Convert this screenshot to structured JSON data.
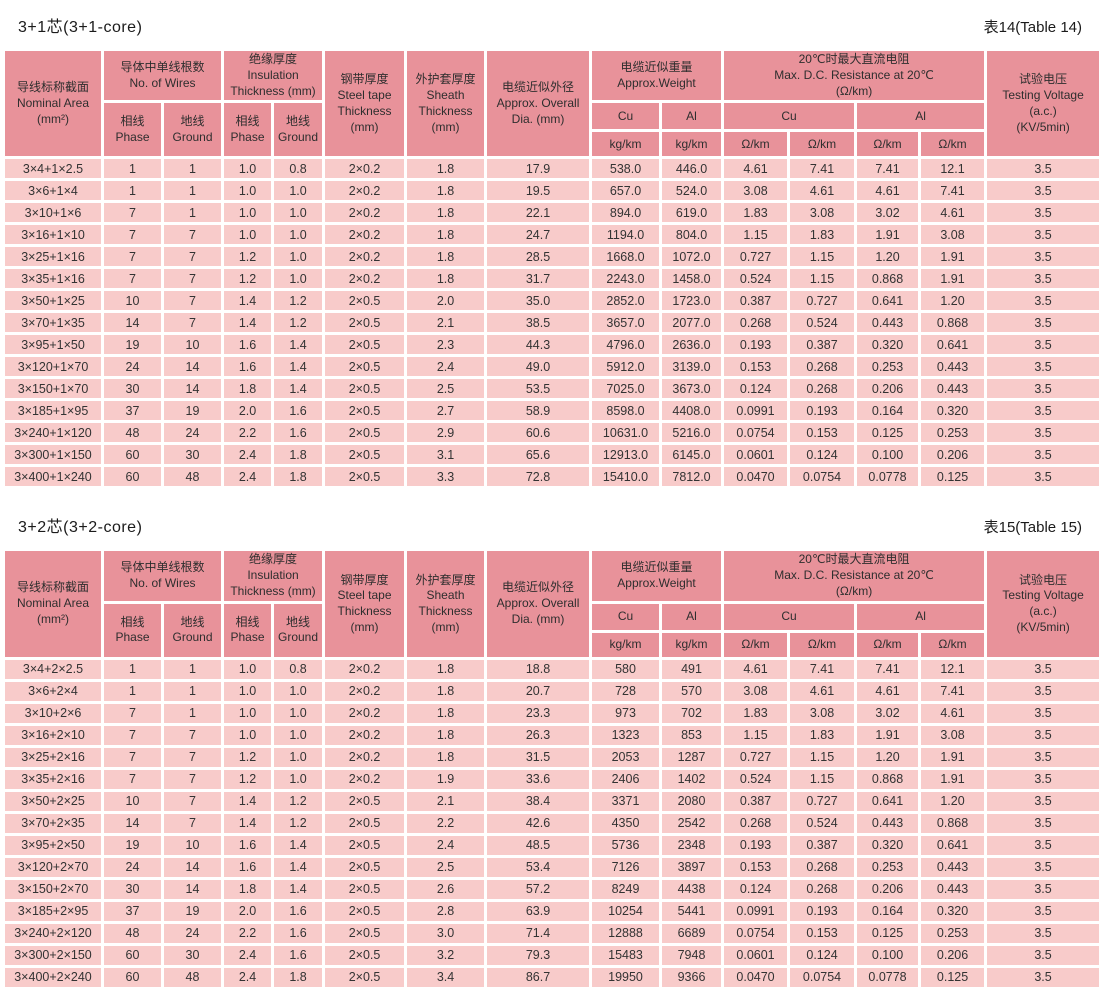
{
  "colors": {
    "page_bg": "#ffffff",
    "header_cell_bg": "#e8929a",
    "data_cell_bg": "#f8cbca",
    "gridline": "#ffffff",
    "text": "#333333"
  },
  "header": {
    "nominal_area": "导线标称截面\nNominal Area\n(mm²)",
    "wires": "导体中单线根数\nNo. of Wires",
    "phase": "相线\nPhase",
    "ground": "地线\nGround",
    "insulation": "绝缘厚度\nInsulation\nThickness (mm)",
    "steel_tape": "钢带厚度\nSteel tape\nThickness\n(mm)",
    "sheath": "外护套厚度\nSheath\nThickness\n(mm)",
    "overall_dia": "电缆近似外径\nApprox. Overall\nDia. (mm)",
    "weight": "电缆近似重量\nApprox.Weight",
    "resistance": "20℃时最大直流电阻\nMax. D.C. Resistance at 20℃\n(Ω/km)",
    "testing_voltage": "试验电压\nTesting Voltage\n(a.c.)\n(KV/5min)",
    "cu": "Cu",
    "al": "Al",
    "kg_km": "kg/km",
    "ohm_km": "Ω/km"
  },
  "tables": [
    {
      "title": "3+1芯(3+1-core)",
      "table_no": "表14(Table 14)",
      "rows": [
        [
          "3×4+1×2.5",
          "1",
          "1",
          "1.0",
          "0.8",
          "2×0.2",
          "1.8",
          "17.9",
          "538.0",
          "446.0",
          "4.61",
          "7.41",
          "7.41",
          "12.1",
          "3.5"
        ],
        [
          "3×6+1×4",
          "1",
          "1",
          "1.0",
          "1.0",
          "2×0.2",
          "1.8",
          "19.5",
          "657.0",
          "524.0",
          "3.08",
          "4.61",
          "4.61",
          "7.41",
          "3.5"
        ],
        [
          "3×10+1×6",
          "7",
          "1",
          "1.0",
          "1.0",
          "2×0.2",
          "1.8",
          "22.1",
          "894.0",
          "619.0",
          "1.83",
          "3.08",
          "3.02",
          "4.61",
          "3.5"
        ],
        [
          "3×16+1×10",
          "7",
          "7",
          "1.0",
          "1.0",
          "2×0.2",
          "1.8",
          "24.7",
          "1194.0",
          "804.0",
          "1.15",
          "1.83",
          "1.91",
          "3.08",
          "3.5"
        ],
        [
          "3×25+1×16",
          "7",
          "7",
          "1.2",
          "1.0",
          "2×0.2",
          "1.8",
          "28.5",
          "1668.0",
          "1072.0",
          "0.727",
          "1.15",
          "1.20",
          "1.91",
          "3.5"
        ],
        [
          "3×35+1×16",
          "7",
          "7",
          "1.2",
          "1.0",
          "2×0.2",
          "1.8",
          "31.7",
          "2243.0",
          "1458.0",
          "0.524",
          "1.15",
          "0.868",
          "1.91",
          "3.5"
        ],
        [
          "3×50+1×25",
          "10",
          "7",
          "1.4",
          "1.2",
          "2×0.5",
          "2.0",
          "35.0",
          "2852.0",
          "1723.0",
          "0.387",
          "0.727",
          "0.641",
          "1.20",
          "3.5"
        ],
        [
          "3×70+1×35",
          "14",
          "7",
          "1.4",
          "1.2",
          "2×0.5",
          "2.1",
          "38.5",
          "3657.0",
          "2077.0",
          "0.268",
          "0.524",
          "0.443",
          "0.868",
          "3.5"
        ],
        [
          "3×95+1×50",
          "19",
          "10",
          "1.6",
          "1.4",
          "2×0.5",
          "2.3",
          "44.3",
          "4796.0",
          "2636.0",
          "0.193",
          "0.387",
          "0.320",
          "0.641",
          "3.5"
        ],
        [
          "3×120+1×70",
          "24",
          "14",
          "1.6",
          "1.4",
          "2×0.5",
          "2.4",
          "49.0",
          "5912.0",
          "3139.0",
          "0.153",
          "0.268",
          "0.253",
          "0.443",
          "3.5"
        ],
        [
          "3×150+1×70",
          "30",
          "14",
          "1.8",
          "1.4",
          "2×0.5",
          "2.5",
          "53.5",
          "7025.0",
          "3673.0",
          "0.124",
          "0.268",
          "0.206",
          "0.443",
          "3.5"
        ],
        [
          "3×185+1×95",
          "37",
          "19",
          "2.0",
          "1.6",
          "2×0.5",
          "2.7",
          "58.9",
          "8598.0",
          "4408.0",
          "0.0991",
          "0.193",
          "0.164",
          "0.320",
          "3.5"
        ],
        [
          "3×240+1×120",
          "48",
          "24",
          "2.2",
          "1.6",
          "2×0.5",
          "2.9",
          "60.6",
          "10631.0",
          "5216.0",
          "0.0754",
          "0.153",
          "0.125",
          "0.253",
          "3.5"
        ],
        [
          "3×300+1×150",
          "60",
          "30",
          "2.4",
          "1.8",
          "2×0.5",
          "3.1",
          "65.6",
          "12913.0",
          "6145.0",
          "0.0601",
          "0.124",
          "0.100",
          "0.206",
          "3.5"
        ],
        [
          "3×400+1×240",
          "60",
          "48",
          "2.4",
          "1.8",
          "2×0.5",
          "3.3",
          "72.8",
          "15410.0",
          "7812.0",
          "0.0470",
          "0.0754",
          "0.0778",
          "0.125",
          "3.5"
        ]
      ]
    },
    {
      "title": "3+2芯(3+2-core)",
      "table_no": "表15(Table 15)",
      "rows": [
        [
          "3×4+2×2.5",
          "1",
          "1",
          "1.0",
          "0.8",
          "2×0.2",
          "1.8",
          "18.8",
          "580",
          "491",
          "4.61",
          "7.41",
          "7.41",
          "12.1",
          "3.5"
        ],
        [
          "3×6+2×4",
          "1",
          "1",
          "1.0",
          "1.0",
          "2×0.2",
          "1.8",
          "20.7",
          "728",
          "570",
          "3.08",
          "4.61",
          "4.61",
          "7.41",
          "3.5"
        ],
        [
          "3×10+2×6",
          "7",
          "1",
          "1.0",
          "1.0",
          "2×0.2",
          "1.8",
          "23.3",
          "973",
          "702",
          "1.83",
          "3.08",
          "3.02",
          "4.61",
          "3.5"
        ],
        [
          "3×16+2×10",
          "7",
          "7",
          "1.0",
          "1.0",
          "2×0.2",
          "1.8",
          "26.3",
          "1323",
          "853",
          "1.15",
          "1.83",
          "1.91",
          "3.08",
          "3.5"
        ],
        [
          "3×25+2×16",
          "7",
          "7",
          "1.2",
          "1.0",
          "2×0.2",
          "1.8",
          "31.5",
          "2053",
          "1287",
          "0.727",
          "1.15",
          "1.20",
          "1.91",
          "3.5"
        ],
        [
          "3×35+2×16",
          "7",
          "7",
          "1.2",
          "1.0",
          "2×0.2",
          "1.9",
          "33.6",
          "2406",
          "1402",
          "0.524",
          "1.15",
          "0.868",
          "1.91",
          "3.5"
        ],
        [
          "3×50+2×25",
          "10",
          "7",
          "1.4",
          "1.2",
          "2×0.5",
          "2.1",
          "38.4",
          "3371",
          "2080",
          "0.387",
          "0.727",
          "0.641",
          "1.20",
          "3.5"
        ],
        [
          "3×70+2×35",
          "14",
          "7",
          "1.4",
          "1.2",
          "2×0.5",
          "2.2",
          "42.6",
          "4350",
          "2542",
          "0.268",
          "0.524",
          "0.443",
          "0.868",
          "3.5"
        ],
        [
          "3×95+2×50",
          "19",
          "10",
          "1.6",
          "1.4",
          "2×0.5",
          "2.4",
          "48.5",
          "5736",
          "2348",
          "0.193",
          "0.387",
          "0.320",
          "0.641",
          "3.5"
        ],
        [
          "3×120+2×70",
          "24",
          "14",
          "1.6",
          "1.4",
          "2×0.5",
          "2.5",
          "53.4",
          "7126",
          "3897",
          "0.153",
          "0.268",
          "0.253",
          "0.443",
          "3.5"
        ],
        [
          "3×150+2×70",
          "30",
          "14",
          "1.8",
          "1.4",
          "2×0.5",
          "2.6",
          "57.2",
          "8249",
          "4438",
          "0.124",
          "0.268",
          "0.206",
          "0.443",
          "3.5"
        ],
        [
          "3×185+2×95",
          "37",
          "19",
          "2.0",
          "1.6",
          "2×0.5",
          "2.8",
          "63.9",
          "10254",
          "5441",
          "0.0991",
          "0.193",
          "0.164",
          "0.320",
          "3.5"
        ],
        [
          "3×240+2×120",
          "48",
          "24",
          "2.2",
          "1.6",
          "2×0.5",
          "3.0",
          "71.4",
          "12888",
          "6689",
          "0.0754",
          "0.153",
          "0.125",
          "0.253",
          "3.5"
        ],
        [
          "3×300+2×150",
          "60",
          "30",
          "2.4",
          "1.6",
          "2×0.5",
          "3.2",
          "79.3",
          "15483",
          "7948",
          "0.0601",
          "0.124",
          "0.100",
          "0.206",
          "3.5"
        ],
        [
          "3×400+2×240",
          "60",
          "48",
          "2.4",
          "1.8",
          "2×0.5",
          "3.4",
          "86.7",
          "19950",
          "9366",
          "0.0470",
          "0.0754",
          "0.0778",
          "0.125",
          "3.5"
        ]
      ]
    }
  ]
}
